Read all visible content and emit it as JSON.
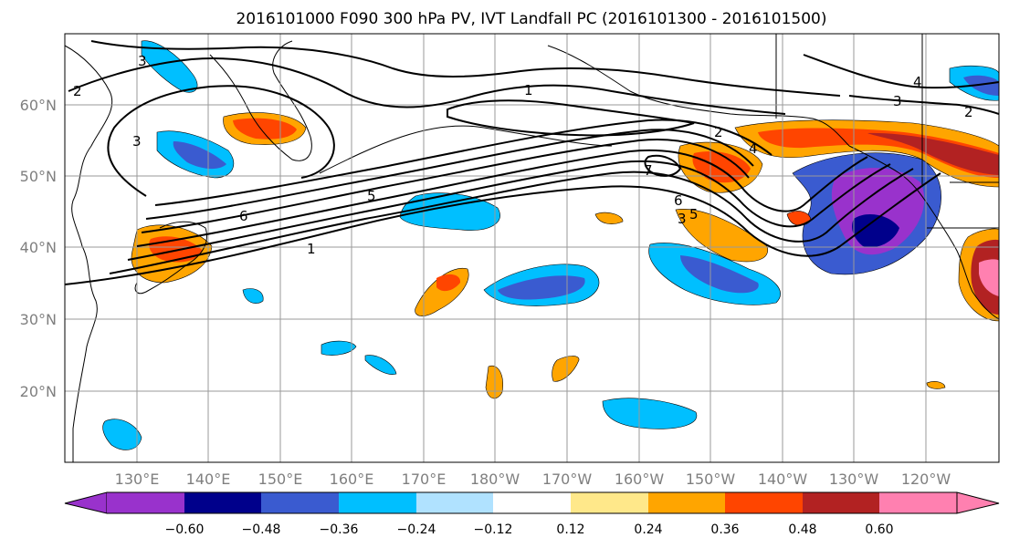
{
  "title": "2016101000 F090 300 hPa PV, IVT Landfall PC (2016101300 - 2016101500)",
  "map": {
    "projection": "PlateCarree",
    "lon_range": [
      "120°E",
      "111°W"
    ],
    "lat_range": [
      10,
      70
    ],
    "lat_ticks": [
      {
        "lat": 60,
        "label": "60°N"
      },
      {
        "lat": 50,
        "label": "50°N"
      },
      {
        "lat": 40,
        "label": "40°N"
      },
      {
        "lat": 30,
        "label": "30°N"
      },
      {
        "lat": 20,
        "label": "20°N"
      }
    ],
    "lon_ticks": [
      {
        "lon": 130,
        "label": "130°E"
      },
      {
        "lon": 140,
        "label": "140°E"
      },
      {
        "lon": 150,
        "label": "150°E"
      },
      {
        "lon": 160,
        "label": "160°E"
      },
      {
        "lon": 170,
        "label": "170°E"
      },
      {
        "lon": 180,
        "label": "180°W"
      },
      {
        "lon": 190,
        "label": "170°W"
      },
      {
        "lon": 200,
        "label": "160°W"
      },
      {
        "lon": 210,
        "label": "150°W"
      },
      {
        "lon": 220,
        "label": "140°W"
      },
      {
        "lon": 230,
        "label": "130°W"
      },
      {
        "lon": 240,
        "label": "120°W"
      }
    ],
    "contour_labels": [
      "1",
      "2",
      "2",
      "3",
      "3",
      "3",
      "3",
      "4",
      "4",
      "5",
      "5",
      "6",
      "6",
      "7",
      "1",
      "2"
    ],
    "gridlines": true,
    "coastlines": true
  },
  "colorbar": {
    "orientation": "horizontal",
    "extend": "both",
    "ticks": [
      "−0.60",
      "−0.48",
      "−0.36",
      "−0.24",
      "−0.12",
      "0.12",
      "0.24",
      "0.36",
      "0.48",
      "0.60"
    ],
    "colors": [
      "#9932cc",
      "#00008b",
      "#3a5bd0",
      "#00bfff",
      "#b0e2ff",
      "#ffffff",
      "#ffe88a",
      "#ffa500",
      "#ff4500",
      "#b22222",
      "#ff80b0"
    ]
  }
}
